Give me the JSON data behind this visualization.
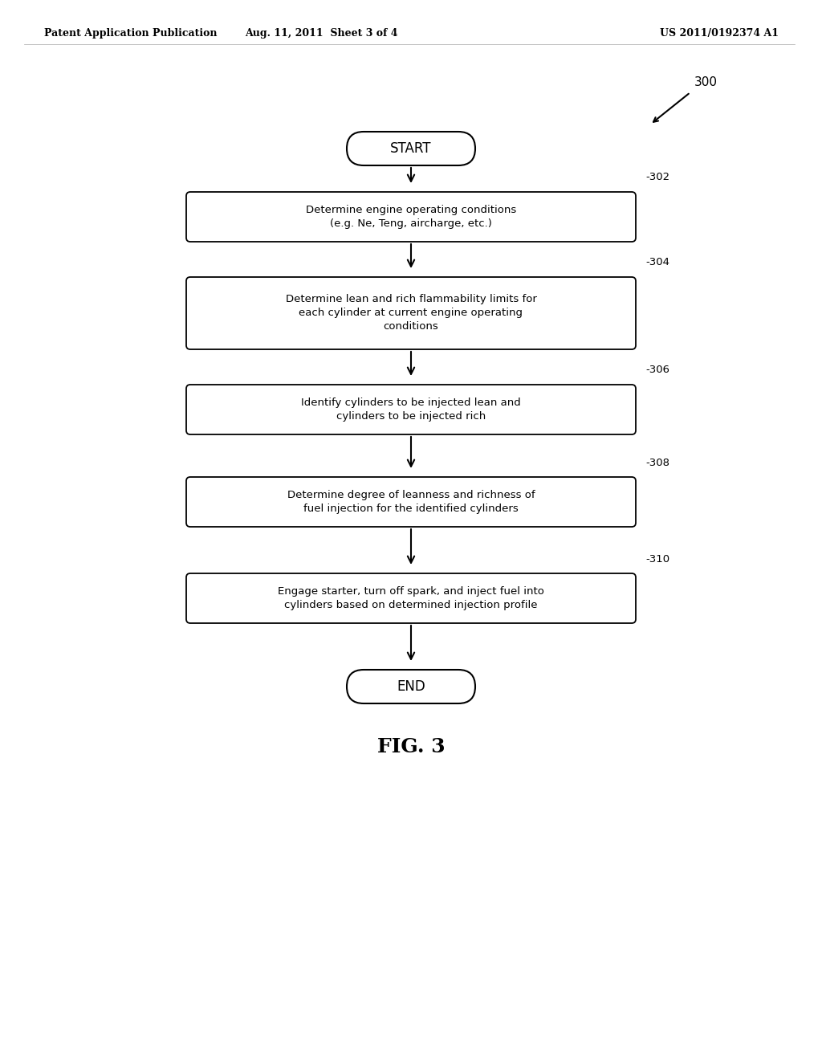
{
  "title_left": "Patent Application Publication",
  "title_mid": "Aug. 11, 2011  Sheet 3 of 4",
  "title_right": "US 2011/0192374 A1",
  "fig_label": "FIG. 3",
  "diagram_number": "300",
  "background_color": "#ffffff",
  "text_color": "#000000",
  "box_edge_color": "#000000",
  "start_end_text": [
    "START",
    "END"
  ],
  "step_labels": [
    "302",
    "304",
    "306",
    "308",
    "310"
  ],
  "step_texts": [
    "Determine engine operating conditions\n(e.g. Ne, Teng, aircharge, etc.)",
    "Determine lean and rich flammability limits for\neach cylinder at current engine operating\nconditions",
    "Identify cylinders to be injected lean and\ncylinders to be injected rich",
    "Determine degree of leanness and richness of\nfuel injection for the identified cylinders",
    "Engage starter, turn off spark, and inject fuel into\ncylinders based on determined injection profile"
  ]
}
